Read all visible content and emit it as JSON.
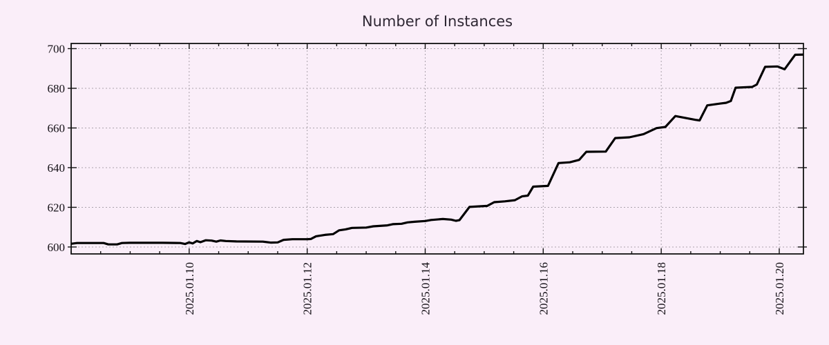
{
  "chart_data": {
    "type": "line",
    "title": "Number of Instances",
    "xlabel": "",
    "ylabel": "",
    "x_unit": "day of January 2025",
    "x_range_days": [
      8.0,
      20.41
    ],
    "y_range": [
      596.5,
      702.6
    ],
    "y_ticks": [
      600,
      620,
      640,
      660,
      680,
      700
    ],
    "x_ticks": [
      {
        "day": 10,
        "label": "2025.01.10"
      },
      {
        "day": 12,
        "label": "2025.01.12"
      },
      {
        "day": 14,
        "label": "2025.01.14"
      },
      {
        "day": 16,
        "label": "2025.01.16"
      },
      {
        "day": 18,
        "label": "2025.01.18"
      },
      {
        "day": 20,
        "label": "2025.01.20"
      }
    ],
    "minor_x_tick_step_days": 0.5,
    "grid": true,
    "legend": "none",
    "colors": {
      "background": "#faeef9",
      "line": "#000000",
      "grid": "#a9a2ab",
      "frame": "#111111",
      "title_text": "#2e2733",
      "tick_text": "#141016"
    },
    "series": [
      {
        "name": "instances",
        "points": [
          [
            8.0,
            601.6
          ],
          [
            8.1,
            602.0
          ],
          [
            8.55,
            602.0
          ],
          [
            8.63,
            601.3
          ],
          [
            8.78,
            601.3
          ],
          [
            8.86,
            602.0
          ],
          [
            9.0,
            602.1
          ],
          [
            9.55,
            602.1
          ],
          [
            9.85,
            602.0
          ],
          [
            9.93,
            601.5
          ],
          [
            10.0,
            602.3
          ],
          [
            10.06,
            601.8
          ],
          [
            10.13,
            603.0
          ],
          [
            10.19,
            602.4
          ],
          [
            10.28,
            603.4
          ],
          [
            10.38,
            603.2
          ],
          [
            10.46,
            602.7
          ],
          [
            10.53,
            603.3
          ],
          [
            10.62,
            603.0
          ],
          [
            10.8,
            602.8
          ],
          [
            11.25,
            602.7
          ],
          [
            11.38,
            602.2
          ],
          [
            11.5,
            602.3
          ],
          [
            11.6,
            603.6
          ],
          [
            11.75,
            603.9
          ],
          [
            12.0,
            603.9
          ],
          [
            12.06,
            604.0
          ],
          [
            12.15,
            605.4
          ],
          [
            12.3,
            606.1
          ],
          [
            12.44,
            606.5
          ],
          [
            12.54,
            608.4
          ],
          [
            12.65,
            608.9
          ],
          [
            12.76,
            609.6
          ],
          [
            13.0,
            609.8
          ],
          [
            13.12,
            610.4
          ],
          [
            13.36,
            610.9
          ],
          [
            13.45,
            611.5
          ],
          [
            13.6,
            611.7
          ],
          [
            13.7,
            612.4
          ],
          [
            13.82,
            612.7
          ],
          [
            14.0,
            613.1
          ],
          [
            14.1,
            613.6
          ],
          [
            14.3,
            614.1
          ],
          [
            14.44,
            613.8
          ],
          [
            14.52,
            613.2
          ],
          [
            14.58,
            613.5
          ],
          [
            14.75,
            620.2
          ],
          [
            15.05,
            620.7
          ],
          [
            15.17,
            622.6
          ],
          [
            15.35,
            623.0
          ],
          [
            15.52,
            623.6
          ],
          [
            15.64,
            625.5
          ],
          [
            15.74,
            625.9
          ],
          [
            15.83,
            630.4
          ],
          [
            16.08,
            630.8
          ],
          [
            16.26,
            642.3
          ],
          [
            16.45,
            642.7
          ],
          [
            16.61,
            643.9
          ],
          [
            16.73,
            648.0
          ],
          [
            17.06,
            648.1
          ],
          [
            17.22,
            654.9
          ],
          [
            17.46,
            655.3
          ],
          [
            17.7,
            656.9
          ],
          [
            17.92,
            659.9
          ],
          [
            18.07,
            660.5
          ],
          [
            18.24,
            666.0
          ],
          [
            18.58,
            664.1
          ],
          [
            18.65,
            663.8
          ],
          [
            18.78,
            671.4
          ],
          [
            19.0,
            672.3
          ],
          [
            19.1,
            672.7
          ],
          [
            19.18,
            673.6
          ],
          [
            19.26,
            680.3
          ],
          [
            19.54,
            680.7
          ],
          [
            19.62,
            681.9
          ],
          [
            19.76,
            690.8
          ],
          [
            19.97,
            691.0
          ],
          [
            20.09,
            689.6
          ],
          [
            20.27,
            696.9
          ],
          [
            20.41,
            697.0
          ]
        ]
      }
    ]
  }
}
